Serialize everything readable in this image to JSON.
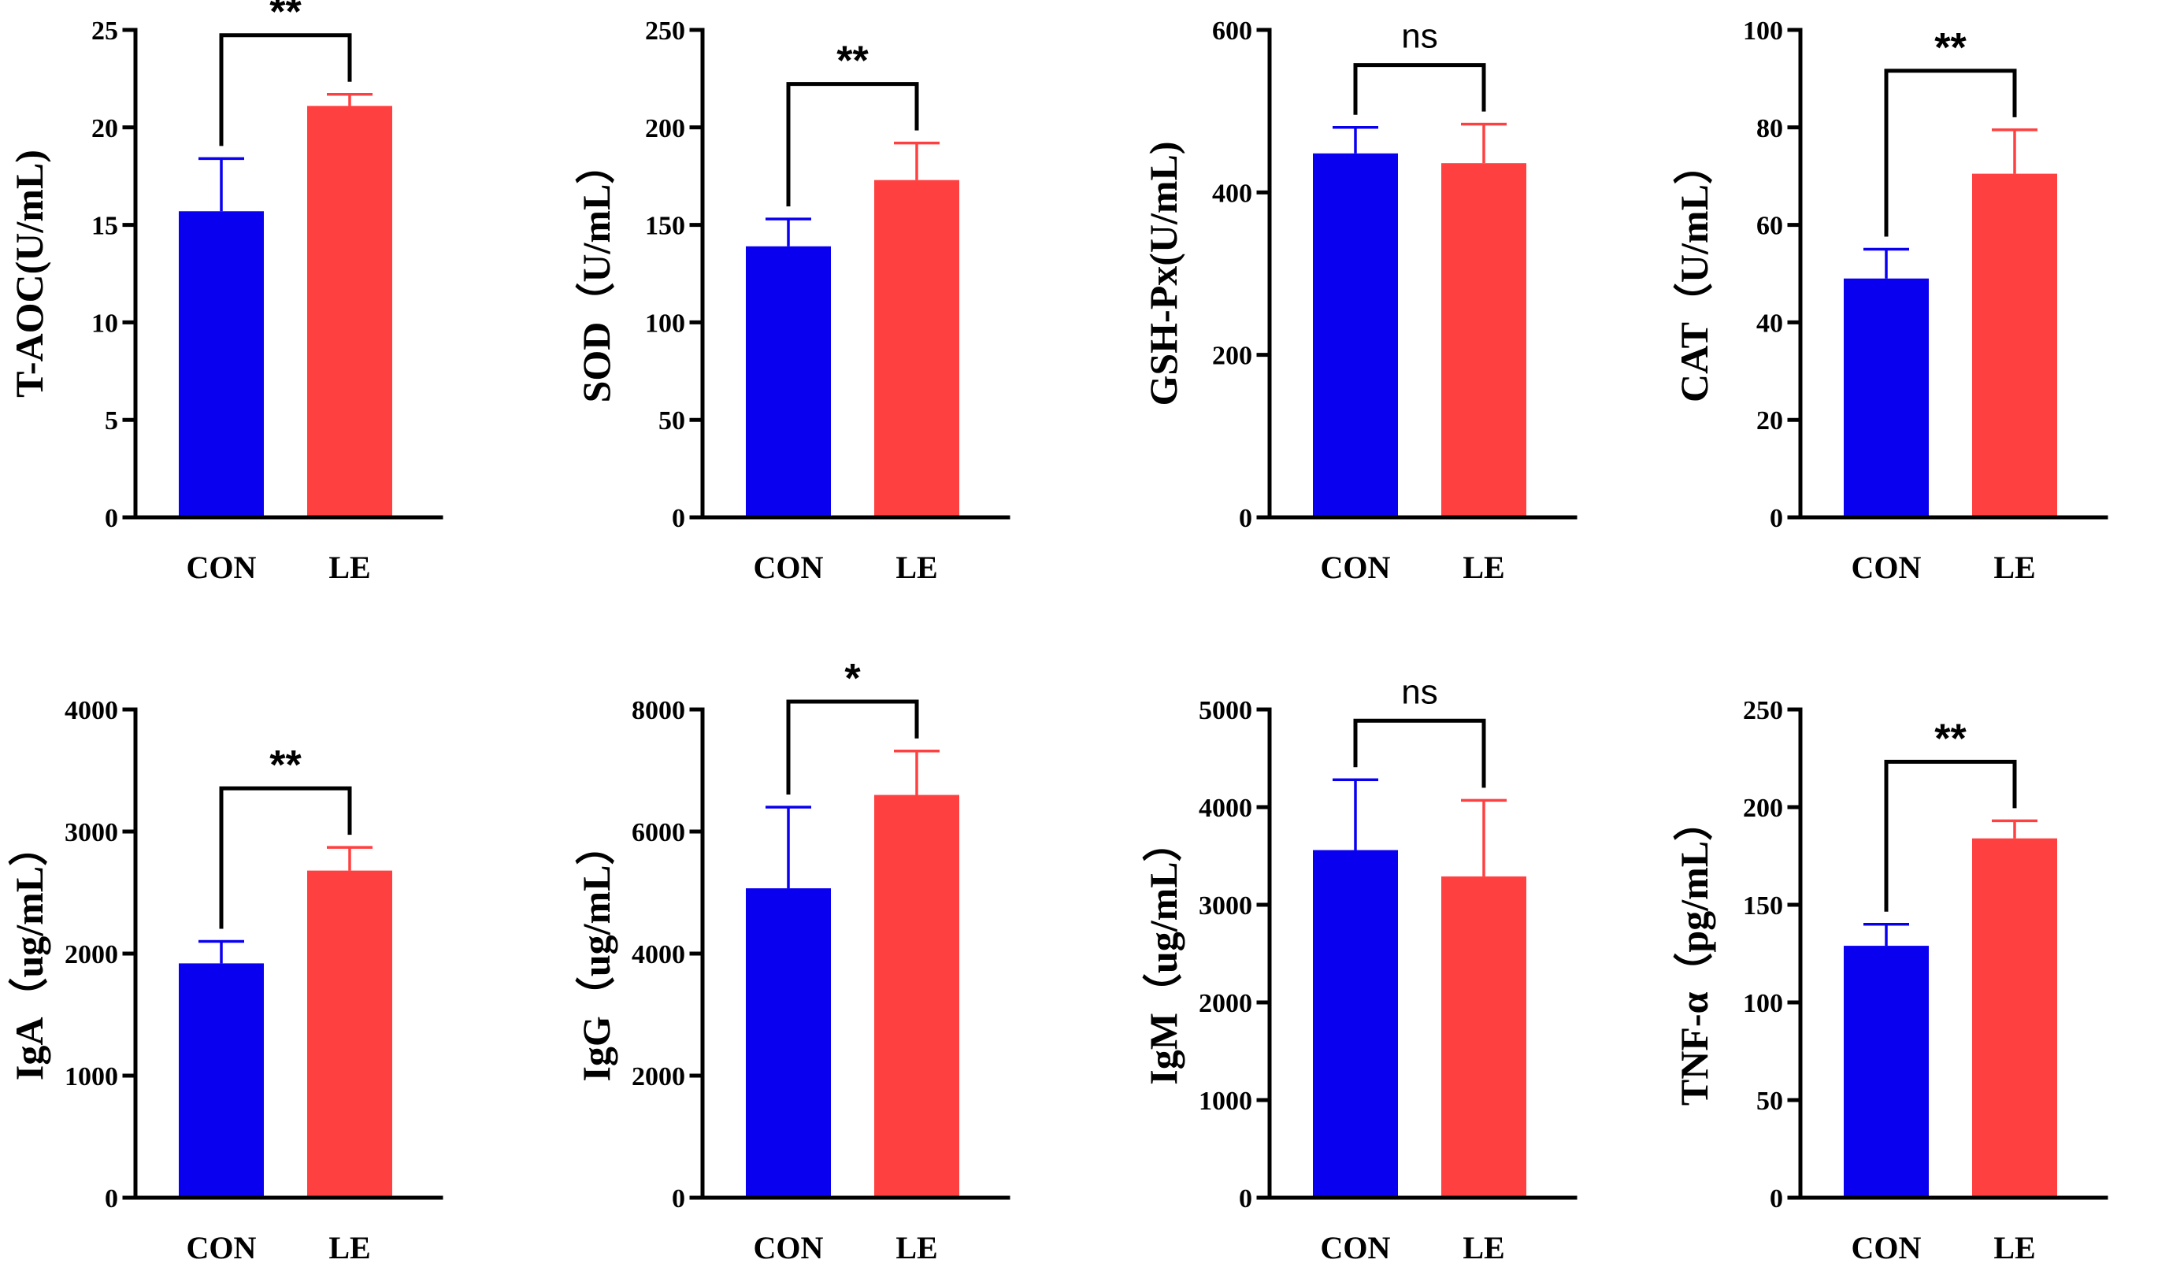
{
  "colors": {
    "CON": "#0a00f0",
    "LE": "#ff4040",
    "axis": "#000000"
  },
  "chart_data": [
    {
      "type": "bar",
      "ylabel": "T-AOC(U/mL)",
      "categories": [
        "CON",
        "LE"
      ],
      "values": [
        15.7,
        21.1
      ],
      "errors": [
        2.7,
        0.6
      ],
      "ylim": [
        0,
        25
      ],
      "yticks": [
        0,
        5,
        10,
        15,
        20,
        25
      ],
      "significance": "**",
      "grid": false
    },
    {
      "type": "bar",
      "ylabel": "SOD（U/mL）",
      "categories": [
        "CON",
        "LE"
      ],
      "values": [
        139,
        173
      ],
      "errors": [
        14,
        19
      ],
      "ylim": [
        0,
        250
      ],
      "yticks": [
        0,
        50,
        100,
        150,
        200,
        250
      ],
      "significance": "**",
      "grid": false
    },
    {
      "type": "bar",
      "ylabel": "GSH-Px(U/mL)",
      "categories": [
        "CON",
        "LE"
      ],
      "values": [
        448,
        436
      ],
      "errors": [
        32,
        48
      ],
      "ylim": [
        0,
        600
      ],
      "yticks": [
        0,
        200,
        400,
        600
      ],
      "significance": "ns",
      "grid": false
    },
    {
      "type": "bar",
      "ylabel": "CAT（U/mL）",
      "categories": [
        "CON",
        "LE"
      ],
      "values": [
        49,
        70.5
      ],
      "errors": [
        6,
        9
      ],
      "ylim": [
        0,
        100
      ],
      "yticks": [
        0,
        20,
        40,
        60,
        80,
        100
      ],
      "significance": "**",
      "grid": false
    },
    {
      "type": "bar",
      "ylabel": "IgA（ug/mL）",
      "categories": [
        "CON",
        "LE"
      ],
      "values": [
        1920,
        2680
      ],
      "errors": [
        180,
        190
      ],
      "ylim": [
        0,
        4000
      ],
      "yticks": [
        0,
        1000,
        2000,
        3000,
        4000
      ],
      "significance": "**",
      "grid": false
    },
    {
      "type": "bar",
      "ylabel": "IgG（ug/mL）",
      "categories": [
        "CON",
        "LE"
      ],
      "values": [
        5070,
        6600
      ],
      "errors": [
        1330,
        720
      ],
      "ylim": [
        0,
        8000
      ],
      "yticks": [
        0,
        2000,
        4000,
        6000,
        8000
      ],
      "significance": "*",
      "grid": false
    },
    {
      "type": "bar",
      "ylabel": "IgM（ug/mL）",
      "categories": [
        "CON",
        "LE"
      ],
      "values": [
        3560,
        3290
      ],
      "errors": [
        720,
        780
      ],
      "ylim": [
        0,
        5000
      ],
      "yticks": [
        0,
        1000,
        2000,
        3000,
        4000,
        5000
      ],
      "significance": "ns",
      "grid": false
    },
    {
      "type": "bar",
      "ylabel": "TNF-α（pg/mL）",
      "categories": [
        "CON",
        "LE"
      ],
      "values": [
        129,
        184
      ],
      "errors": [
        11,
        9
      ],
      "ylim": [
        0,
        250
      ],
      "yticks": [
        0,
        50,
        100,
        150,
        200,
        250
      ],
      "significance": "**",
      "grid": false
    }
  ]
}
